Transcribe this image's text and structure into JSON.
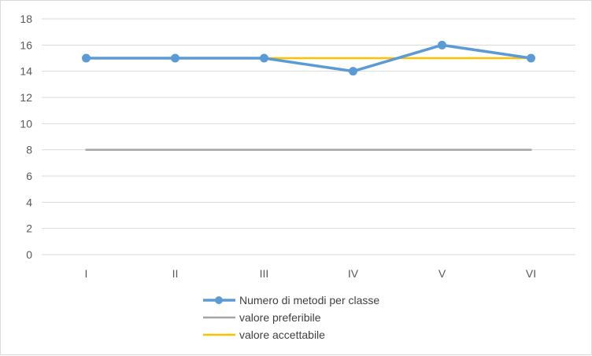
{
  "chart_data": {
    "type": "line",
    "title": "",
    "xlabel": "",
    "ylabel": "",
    "categories": [
      "I",
      "II",
      "III",
      "IV",
      "V",
      "VI"
    ],
    "ylim": [
      0,
      18
    ],
    "yticks": [
      "0",
      "2",
      "4",
      "6",
      "8",
      "10",
      "12",
      "14",
      "16",
      "18"
    ],
    "grid": true,
    "legend_position": "bottom",
    "series": [
      {
        "name": "Numero di metodi per classe",
        "values": [
          15,
          15,
          15,
          14,
          16,
          15
        ],
        "color": "#5b9bd5",
        "markers": true
      },
      {
        "name": "valore preferibile",
        "values": [
          8,
          8,
          8,
          8,
          8,
          8
        ],
        "color": "#a5a5a5",
        "markers": false
      },
      {
        "name": "valore accettabile",
        "values": [
          15,
          15,
          15,
          15,
          15,
          15
        ],
        "color": "#ffc000",
        "markers": false
      }
    ]
  }
}
